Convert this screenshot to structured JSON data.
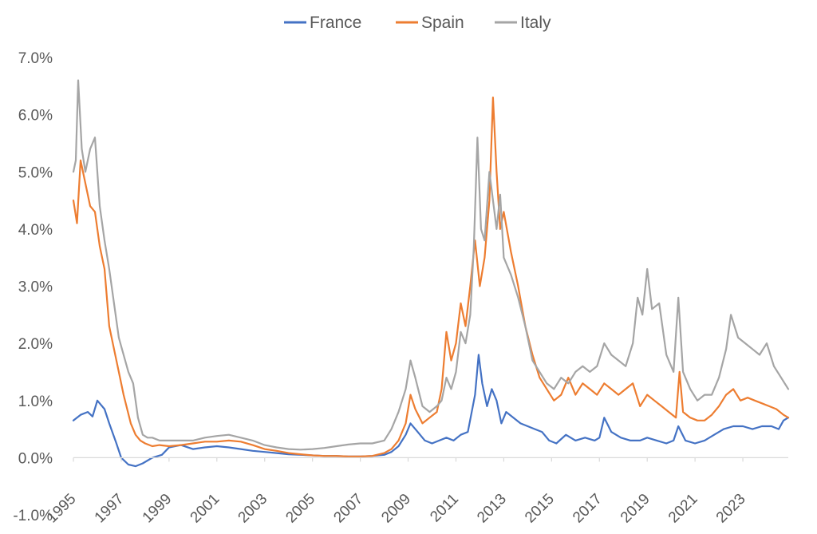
{
  "chart_data": {
    "type": "line",
    "title": "",
    "xlabel": "",
    "ylabel": "",
    "legend_position": "top-center",
    "grid": false,
    "xlim": [
      1995,
      2024.9
    ],
    "ylim": [
      -0.01,
      0.07
    ],
    "x_ticks": [
      "1995",
      "1997",
      "1999",
      "2001",
      "2003",
      "2005",
      "2007",
      "2009",
      "2011",
      "2013",
      "2015",
      "2017",
      "2019",
      "2021",
      "2023"
    ],
    "y_ticks": [
      "-1.0%",
      "0.0%",
      "1.0%",
      "2.0%",
      "3.0%",
      "4.0%",
      "5.0%",
      "6.0%",
      "7.0%"
    ],
    "series": [
      {
        "name": "France",
        "color": "#4472C4",
        "x": [
          1995.0,
          1995.3,
          1995.6,
          1995.8,
          1996.0,
          1996.3,
          1996.5,
          1996.8,
          1997.0,
          1997.3,
          1997.6,
          1997.9,
          1998.3,
          1998.7,
          1999.0,
          1999.5,
          2000.0,
          2000.5,
          2001.0,
          2001.5,
          2002.0,
          2002.5,
          2003.0,
          2003.5,
          2004.0,
          2004.5,
          2005.0,
          2005.5,
          2006.0,
          2006.5,
          2007.0,
          2007.5,
          2008.0,
          2008.3,
          2008.6,
          2008.9,
          2009.1,
          2009.4,
          2009.7,
          2010.0,
          2010.3,
          2010.6,
          2010.9,
          2011.2,
          2011.5,
          2011.8,
          2011.95,
          2012.1,
          2012.3,
          2012.5,
          2012.7,
          2012.9,
          2013.1,
          2013.4,
          2013.7,
          2014.0,
          2014.3,
          2014.6,
          2014.9,
          2015.2,
          2015.6,
          2016.0,
          2016.4,
          2016.8,
          2017.0,
          2017.2,
          2017.5,
          2017.9,
          2018.3,
          2018.7,
          2019.0,
          2019.4,
          2019.8,
          2020.1,
          2020.3,
          2020.6,
          2021.0,
          2021.4,
          2021.8,
          2022.2,
          2022.6,
          2023.0,
          2023.4,
          2023.8,
          2024.2,
          2024.5,
          2024.7,
          2024.9
        ],
        "y": [
          0.0065,
          0.0075,
          0.008,
          0.0072,
          0.01,
          0.0085,
          0.006,
          0.0025,
          0.0,
          -0.0012,
          -0.0015,
          -0.001,
          0.0,
          0.0005,
          0.0018,
          0.0022,
          0.0015,
          0.0018,
          0.002,
          0.0018,
          0.0015,
          0.0012,
          0.001,
          0.0008,
          0.0006,
          0.0005,
          0.0004,
          0.0003,
          0.0003,
          0.0002,
          0.0002,
          0.0003,
          0.0005,
          0.001,
          0.002,
          0.004,
          0.006,
          0.0045,
          0.003,
          0.0025,
          0.003,
          0.0035,
          0.003,
          0.004,
          0.0045,
          0.011,
          0.018,
          0.013,
          0.009,
          0.012,
          0.01,
          0.006,
          0.008,
          0.007,
          0.006,
          0.0055,
          0.005,
          0.0045,
          0.003,
          0.0025,
          0.004,
          0.003,
          0.0035,
          0.003,
          0.0035,
          0.007,
          0.0045,
          0.0035,
          0.003,
          0.003,
          0.0035,
          0.003,
          0.0025,
          0.003,
          0.0055,
          0.003,
          0.0025,
          0.003,
          0.004,
          0.005,
          0.0055,
          0.0055,
          0.005,
          0.0055,
          0.0055,
          0.005,
          0.0065,
          0.007
        ]
      },
      {
        "name": "Spain",
        "color": "#ED7D31",
        "x": [
          1995.0,
          1995.15,
          1995.3,
          1995.5,
          1995.7,
          1995.9,
          1996.1,
          1996.3,
          1996.5,
          1996.7,
          1996.9,
          1997.1,
          1997.4,
          1997.6,
          1997.8,
          1998.0,
          1998.3,
          1998.6,
          1999.0,
          1999.5,
          2000.0,
          2000.5,
          2001.0,
          2001.5,
          2002.0,
          2002.5,
          2003.0,
          2003.5,
          2004.0,
          2004.5,
          2005.0,
          2005.5,
          2006.0,
          2006.5,
          2007.0,
          2007.5,
          2008.0,
          2008.3,
          2008.6,
          2008.9,
          2009.1,
          2009.3,
          2009.6,
          2009.9,
          2010.2,
          2010.4,
          2010.6,
          2010.8,
          2011.0,
          2011.2,
          2011.4,
          2011.6,
          2011.8,
          2012.0,
          2012.2,
          2012.4,
          2012.55,
          2012.7,
          2012.85,
          2013.0,
          2013.3,
          2013.6,
          2013.9,
          2014.2,
          2014.5,
          2014.8,
          2015.1,
          2015.4,
          2015.7,
          2016.0,
          2016.3,
          2016.6,
          2016.9,
          2017.2,
          2017.5,
          2017.8,
          2018.1,
          2018.4,
          2018.7,
          2019.0,
          2019.3,
          2019.6,
          2019.9,
          2020.2,
          2020.35,
          2020.5,
          2020.8,
          2021.1,
          2021.4,
          2021.7,
          2022.0,
          2022.3,
          2022.6,
          2022.9,
          2023.2,
          2023.5,
          2023.8,
          2024.1,
          2024.4,
          2024.7,
          2024.9
        ],
        "y": [
          0.045,
          0.041,
          0.052,
          0.048,
          0.044,
          0.043,
          0.037,
          0.033,
          0.023,
          0.019,
          0.015,
          0.011,
          0.006,
          0.004,
          0.003,
          0.0025,
          0.002,
          0.0022,
          0.002,
          0.0022,
          0.0025,
          0.0028,
          0.0028,
          0.003,
          0.0028,
          0.0022,
          0.0015,
          0.0012,
          0.0008,
          0.0006,
          0.0004,
          0.0003,
          0.0003,
          0.0002,
          0.0002,
          0.0003,
          0.0008,
          0.0015,
          0.003,
          0.006,
          0.011,
          0.0085,
          0.006,
          0.007,
          0.008,
          0.012,
          0.022,
          0.017,
          0.02,
          0.027,
          0.023,
          0.03,
          0.038,
          0.03,
          0.035,
          0.045,
          0.063,
          0.05,
          0.04,
          0.043,
          0.036,
          0.03,
          0.023,
          0.018,
          0.014,
          0.012,
          0.01,
          0.011,
          0.014,
          0.011,
          0.013,
          0.012,
          0.011,
          0.013,
          0.012,
          0.011,
          0.012,
          0.013,
          0.009,
          0.011,
          0.01,
          0.009,
          0.008,
          0.007,
          0.015,
          0.008,
          0.007,
          0.0065,
          0.0065,
          0.0075,
          0.009,
          0.011,
          0.012,
          0.01,
          0.0105,
          0.01,
          0.0095,
          0.009,
          0.0085,
          0.0075,
          0.007
        ]
      },
      {
        "name": "Italy",
        "color": "#A5A5A5",
        "x": [
          1995.0,
          1995.1,
          1995.2,
          1995.35,
          1995.5,
          1995.7,
          1995.9,
          1996.1,
          1996.3,
          1996.5,
          1996.7,
          1996.9,
          1997.1,
          1997.3,
          1997.5,
          1997.7,
          1997.9,
          1998.1,
          1998.3,
          1998.6,
          1999.0,
          1999.5,
          2000.0,
          2000.5,
          2001.0,
          2001.5,
          2002.0,
          2002.5,
          2003.0,
          2003.5,
          2004.0,
          2004.5,
          2005.0,
          2005.5,
          2006.0,
          2006.5,
          2007.0,
          2007.5,
          2008.0,
          2008.3,
          2008.6,
          2008.9,
          2009.1,
          2009.3,
          2009.6,
          2009.9,
          2010.2,
          2010.4,
          2010.6,
          2010.8,
          2011.0,
          2011.2,
          2011.4,
          2011.6,
          2011.75,
          2011.9,
          2012.05,
          2012.2,
          2012.4,
          2012.55,
          2012.7,
          2012.85,
          2013.0,
          2013.3,
          2013.6,
          2013.9,
          2014.2,
          2014.5,
          2014.8,
          2015.1,
          2015.4,
          2015.7,
          2016.0,
          2016.3,
          2016.6,
          2016.9,
          2017.2,
          2017.5,
          2017.8,
          2018.1,
          2018.4,
          2018.6,
          2018.8,
          2019.0,
          2019.2,
          2019.5,
          2019.8,
          2020.1,
          2020.3,
          2020.5,
          2020.8,
          2021.1,
          2021.4,
          2021.7,
          2022.0,
          2022.3,
          2022.5,
          2022.8,
          2023.1,
          2023.4,
          2023.7,
          2024.0,
          2024.3,
          2024.6,
          2024.9
        ],
        "y": [
          0.05,
          0.052,
          0.066,
          0.054,
          0.05,
          0.054,
          0.056,
          0.044,
          0.038,
          0.033,
          0.027,
          0.021,
          0.018,
          0.015,
          0.013,
          0.007,
          0.004,
          0.0035,
          0.0035,
          0.003,
          0.003,
          0.003,
          0.003,
          0.0035,
          0.0038,
          0.004,
          0.0035,
          0.003,
          0.0022,
          0.0018,
          0.0015,
          0.0014,
          0.0015,
          0.0017,
          0.002,
          0.0023,
          0.0025,
          0.0025,
          0.003,
          0.005,
          0.008,
          0.012,
          0.017,
          0.014,
          0.009,
          0.008,
          0.009,
          0.01,
          0.014,
          0.012,
          0.015,
          0.022,
          0.02,
          0.025,
          0.037,
          0.056,
          0.04,
          0.038,
          0.05,
          0.045,
          0.04,
          0.046,
          0.035,
          0.032,
          0.028,
          0.023,
          0.017,
          0.015,
          0.013,
          0.012,
          0.014,
          0.013,
          0.015,
          0.016,
          0.015,
          0.016,
          0.02,
          0.018,
          0.017,
          0.016,
          0.02,
          0.028,
          0.025,
          0.033,
          0.026,
          0.027,
          0.018,
          0.015,
          0.028,
          0.015,
          0.012,
          0.01,
          0.011,
          0.011,
          0.014,
          0.019,
          0.025,
          0.021,
          0.02,
          0.019,
          0.018,
          0.02,
          0.016,
          0.014,
          0.012
        ]
      }
    ]
  }
}
